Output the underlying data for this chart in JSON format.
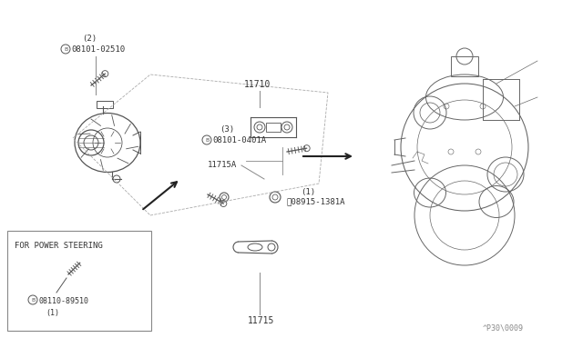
{
  "bg_color": "#ffffff",
  "fig_width": 6.4,
  "fig_height": 3.72,
  "dpi": 100,
  "draw_color": "#555555",
  "light_color": "#888888",
  "text_color": "#333333",
  "diagram_code": "^P30\\0009",
  "labels": {
    "for_power_steering": "FOR POWER STEERING",
    "part_08110_89510": "®08110-89510",
    "part_08110_89510_num": "（1）",
    "part_11715": "11715",
    "part_11715A": "11715A",
    "part_08915_1381A": "Ⓥ08915-1381A",
    "part_08915_1381A_num": "（1）",
    "part_08101_0401A": "®08101-0401A",
    "part_08101_0401A_num": "（3）",
    "part_08101_02510": "®08101-02510",
    "part_08101_02510_num": "（2）",
    "part_11710": "11710"
  }
}
